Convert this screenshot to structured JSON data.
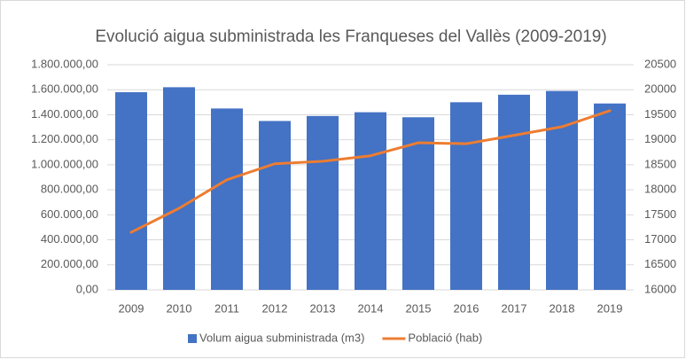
{
  "chart_data": {
    "type": "bar-line",
    "title": "Evolució aigua subministrada les Franqueses del Vallès (2009-2019)",
    "categories": [
      "2009",
      "2010",
      "2011",
      "2012",
      "2013",
      "2014",
      "2015",
      "2016",
      "2017",
      "2018",
      "2019"
    ],
    "series": [
      {
        "name": "Volum aigua subministrada (m3)",
        "color": "#4472c4",
        "type": "bar",
        "values": [
          1580000,
          1620000,
          1450000,
          1350000,
          1390000,
          1420000,
          1380000,
          1500000,
          1560000,
          1590000,
          1490000
        ]
      },
      {
        "name": "Població (hab)",
        "color": "#ed7d31",
        "type": "line",
        "axis": "y2",
        "values": [
          17150,
          17630,
          18200,
          18520,
          18570,
          18680,
          18940,
          18920,
          19090,
          19260,
          19580
        ]
      }
    ],
    "ylim": [
      0,
      1800000
    ],
    "yticks": [
      {
        "value": 0,
        "label": "0,00"
      },
      {
        "value": 200000,
        "label": "200.000,00"
      },
      {
        "value": 400000,
        "label": "400.000,00"
      },
      {
        "value": 600000,
        "label": "600.000,00"
      },
      {
        "value": 800000,
        "label": "800.000,00"
      },
      {
        "value": 1000000,
        "label": "1.000.000,00"
      },
      {
        "value": 1200000,
        "label": "1.200.000,00"
      },
      {
        "value": 1400000,
        "label": "1.400.000,00"
      },
      {
        "value": 1600000,
        "label": "1.600.000,00"
      },
      {
        "value": 1800000,
        "label": "1.800.000,00"
      }
    ],
    "y2lim": [
      16000,
      20500
    ],
    "y2ticks": [
      16000,
      16500,
      17000,
      17500,
      18000,
      18500,
      19000,
      19500,
      20000,
      20500
    ],
    "grid": true,
    "legend": "bottom"
  }
}
